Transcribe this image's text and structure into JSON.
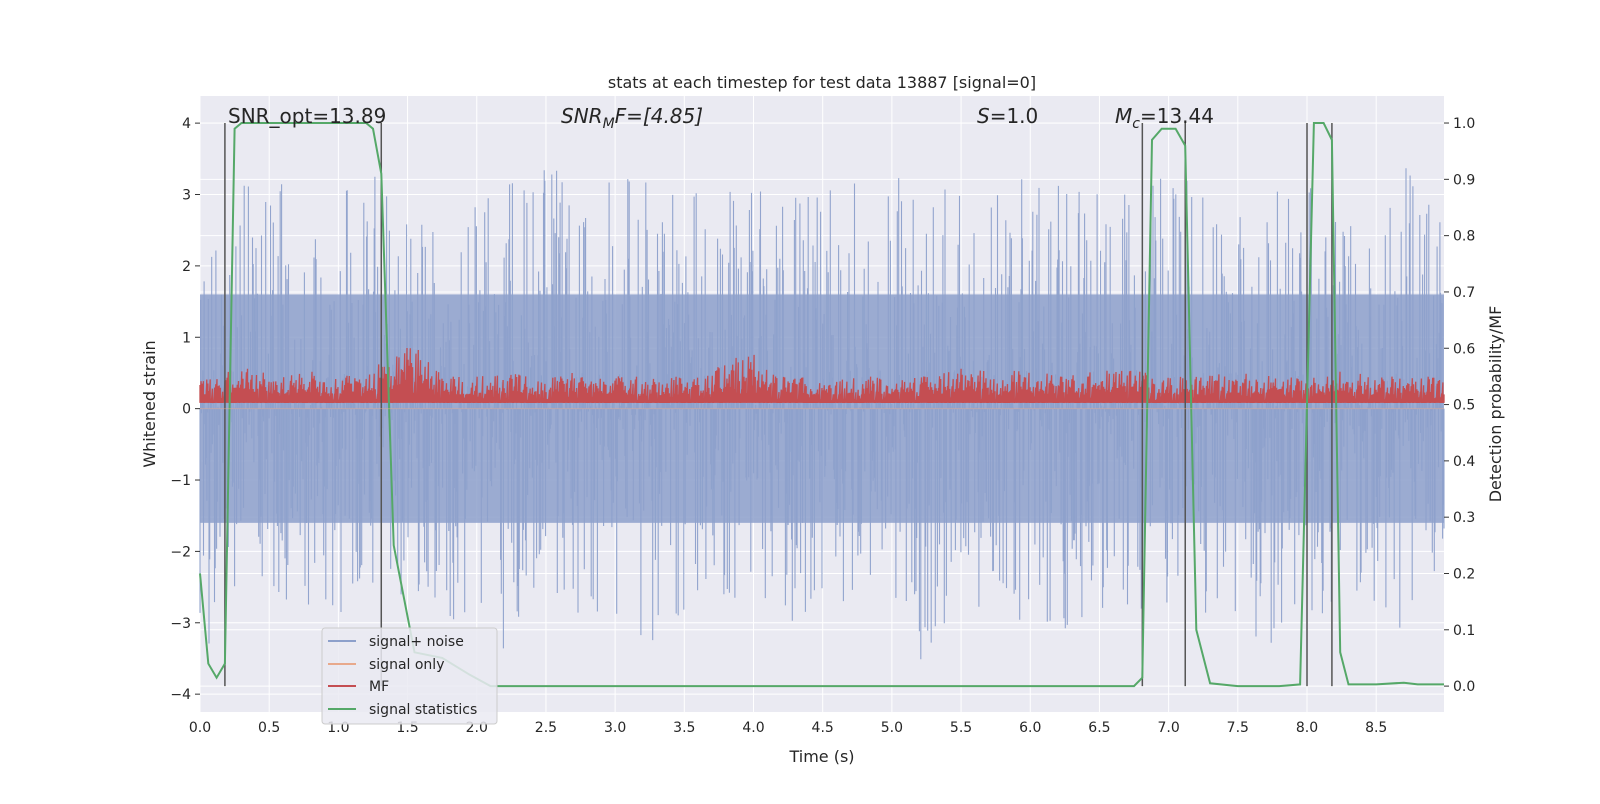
{
  "chart_data": {
    "type": "line",
    "title": "stats at each timestep for test data 13887 [signal=0]",
    "xlabel": "Time (s)",
    "ylabel": "Whitened strain",
    "ylabel_right": "Detection probability/MF",
    "xlim": [
      0.0,
      8.99
    ],
    "ylim": [
      -4.25,
      4.38
    ],
    "ylim_right": [
      -0.046,
      1.048
    ],
    "x_ticks": [
      "0.0",
      "0.5",
      "1.0",
      "1.5",
      "2.0",
      "2.5",
      "3.0",
      "3.5",
      "4.0",
      "4.5",
      "5.0",
      "5.5",
      "6.0",
      "6.5",
      "7.0",
      "7.5",
      "8.0",
      "8.5"
    ],
    "y_ticks": [
      "4",
      "3",
      "2",
      "1",
      "0",
      "−1",
      "−2",
      "−3",
      "−4"
    ],
    "y_ticks_right": [
      "1.0",
      "0.9",
      "0.8",
      "0.7",
      "0.6",
      "0.5",
      "0.4",
      "0.3",
      "0.2",
      "0.1",
      "0.0"
    ],
    "grid": true,
    "legend_position": "lower-left",
    "colors": {
      "background": "#eaeaf2",
      "grid": "#ffffff",
      "noise": "#8da0cb",
      "signal_only": "#e8a98c",
      "mf": "#c44e52",
      "statistics": "#55a868",
      "vlines": "#555555"
    },
    "annotations": {
      "snr_opt": "SNR_opt=13.89",
      "snr_mf_prefix": "SNR",
      "snr_mf_sub": "M",
      "snr_mf_rest": "F=[4.85]",
      "s_var": "S",
      "s_rest": "=1.0",
      "mc_var": "M",
      "mc_sub": "c",
      "mc_rest": "=13.44"
    },
    "vertical_lines": [
      0.18,
      1.31,
      6.81,
      7.12,
      8.0,
      8.18
    ],
    "series": [
      {
        "name": "signal+ noise",
        "axis": "left",
        "envelope_upper": [
          [
            0.0,
            2.6
          ],
          [
            0.25,
            3.2
          ],
          [
            0.5,
            3.3
          ],
          [
            0.75,
            3.4
          ],
          [
            1.0,
            3.0
          ],
          [
            1.25,
            3.4
          ],
          [
            1.5,
            2.8
          ],
          [
            1.75,
            3.1
          ],
          [
            2.0,
            3.0
          ],
          [
            2.25,
            3.3
          ],
          [
            2.5,
            3.4
          ],
          [
            2.75,
            3.3
          ],
          [
            3.0,
            3.2
          ],
          [
            3.25,
            3.5
          ],
          [
            3.5,
            3.1
          ],
          [
            3.75,
            3.3
          ],
          [
            4.0,
            3.1
          ],
          [
            4.25,
            3.2
          ],
          [
            4.5,
            3.2
          ],
          [
            4.75,
            3.3
          ],
          [
            5.0,
            3.4
          ],
          [
            5.25,
            3.2
          ],
          [
            5.5,
            3.0
          ],
          [
            5.75,
            3.1
          ],
          [
            6.0,
            3.4
          ],
          [
            6.25,
            3.1
          ],
          [
            6.5,
            3.2
          ],
          [
            6.75,
            3.3
          ],
          [
            7.0,
            3.2
          ],
          [
            7.25,
            3.3
          ],
          [
            7.5,
            2.8
          ],
          [
            7.75,
            3.1
          ],
          [
            8.0,
            3.1
          ],
          [
            8.25,
            3.0
          ],
          [
            8.5,
            3.1
          ],
          [
            8.75,
            3.6
          ],
          [
            8.99,
            2.7
          ]
        ],
        "envelope_lower": [
          [
            0.0,
            -3.5
          ],
          [
            0.25,
            -3.0
          ],
          [
            0.5,
            -2.6
          ],
          [
            0.75,
            -2.9
          ],
          [
            1.0,
            -3.0
          ],
          [
            1.25,
            -2.6
          ],
          [
            1.5,
            -2.8
          ],
          [
            1.75,
            -3.1
          ],
          [
            2.0,
            -3.0
          ],
          [
            2.25,
            -3.8
          ],
          [
            2.5,
            -3.0
          ],
          [
            2.75,
            -3.0
          ],
          [
            3.0,
            -2.9
          ],
          [
            3.25,
            -3.3
          ],
          [
            3.5,
            -3.1
          ],
          [
            3.75,
            -2.8
          ],
          [
            4.0,
            -3.0
          ],
          [
            4.25,
            -3.0
          ],
          [
            4.5,
            -2.9
          ],
          [
            4.75,
            -2.7
          ],
          [
            5.0,
            -2.8
          ],
          [
            5.25,
            -3.8
          ],
          [
            5.5,
            -3.0
          ],
          [
            5.75,
            -2.7
          ],
          [
            6.0,
            -3.4
          ],
          [
            6.25,
            -3.2
          ],
          [
            6.5,
            -2.8
          ],
          [
            6.75,
            -2.9
          ],
          [
            7.0,
            -3.0
          ],
          [
            7.25,
            -2.9
          ],
          [
            7.5,
            -3.3
          ],
          [
            7.75,
            -3.4
          ],
          [
            8.0,
            -2.8
          ],
          [
            8.25,
            -3.0
          ],
          [
            8.5,
            -2.7
          ],
          [
            8.75,
            -3.3
          ],
          [
            8.99,
            -2.3
          ]
        ]
      },
      {
        "name": "signal only",
        "axis": "left",
        "x": [
          0.0,
          8.99
        ],
        "y": [
          0.0,
          0.0
        ]
      },
      {
        "name": "MF",
        "axis": "right",
        "baseline": 0.5,
        "peak_points": [
          [
            0.1,
            0.55
          ],
          [
            0.32,
            0.57
          ],
          [
            0.55,
            0.55
          ],
          [
            0.78,
            0.56
          ],
          [
            1.0,
            0.55
          ],
          [
            1.2,
            0.56
          ],
          [
            1.55,
            0.61
          ],
          [
            1.75,
            0.55
          ],
          [
            2.0,
            0.55
          ],
          [
            2.25,
            0.56
          ],
          [
            2.5,
            0.55
          ],
          [
            2.75,
            0.56
          ],
          [
            3.0,
            0.55
          ],
          [
            3.2,
            0.55
          ],
          [
            3.5,
            0.55
          ],
          [
            3.7,
            0.56
          ],
          [
            3.95,
            0.6
          ],
          [
            4.2,
            0.55
          ],
          [
            4.5,
            0.55
          ],
          [
            4.75,
            0.55
          ],
          [
            5.0,
            0.55
          ],
          [
            5.3,
            0.55
          ],
          [
            5.55,
            0.57
          ],
          [
            5.75,
            0.56
          ],
          [
            6.0,
            0.56
          ],
          [
            6.25,
            0.55
          ],
          [
            6.5,
            0.56
          ],
          [
            6.75,
            0.56
          ],
          [
            7.0,
            0.55
          ],
          [
            7.25,
            0.55
          ],
          [
            7.5,
            0.56
          ],
          [
            7.75,
            0.55
          ],
          [
            8.0,
            0.55
          ],
          [
            8.25,
            0.56
          ],
          [
            8.5,
            0.55
          ],
          [
            8.75,
            0.55
          ],
          [
            8.99,
            0.55
          ]
        ]
      },
      {
        "name": "signal statistics",
        "axis": "right",
        "x": [
          0.0,
          0.06,
          0.12,
          0.18,
          0.25,
          0.3,
          0.4,
          0.6,
          0.8,
          1.0,
          1.2,
          1.25,
          1.31,
          1.4,
          1.55,
          1.75,
          1.95,
          2.1,
          2.5,
          3.0,
          3.5,
          4.0,
          4.5,
          5.0,
          5.5,
          6.0,
          6.5,
          6.75,
          6.81,
          6.88,
          6.95,
          7.05,
          7.12,
          7.2,
          7.3,
          7.5,
          7.8,
          7.95,
          8.05,
          8.12,
          8.18,
          8.24,
          8.3,
          8.5,
          8.7,
          8.8,
          8.99
        ],
        "y": [
          0.2,
          0.04,
          0.015,
          0.04,
          0.99,
          1.0,
          1.0,
          1.0,
          1.0,
          1.0,
          1.0,
          0.99,
          0.91,
          0.25,
          0.06,
          0.05,
          0.02,
          0.0,
          0.0,
          0.0,
          0.0,
          0.0,
          0.0,
          0.0,
          0.0,
          0.0,
          0.0,
          0.0,
          0.015,
          0.97,
          0.99,
          0.99,
          0.96,
          0.1,
          0.005,
          0.0,
          0.0,
          0.003,
          1.0,
          1.0,
          0.97,
          0.06,
          0.003,
          0.003,
          0.006,
          0.003,
          0.003
        ]
      }
    ]
  }
}
